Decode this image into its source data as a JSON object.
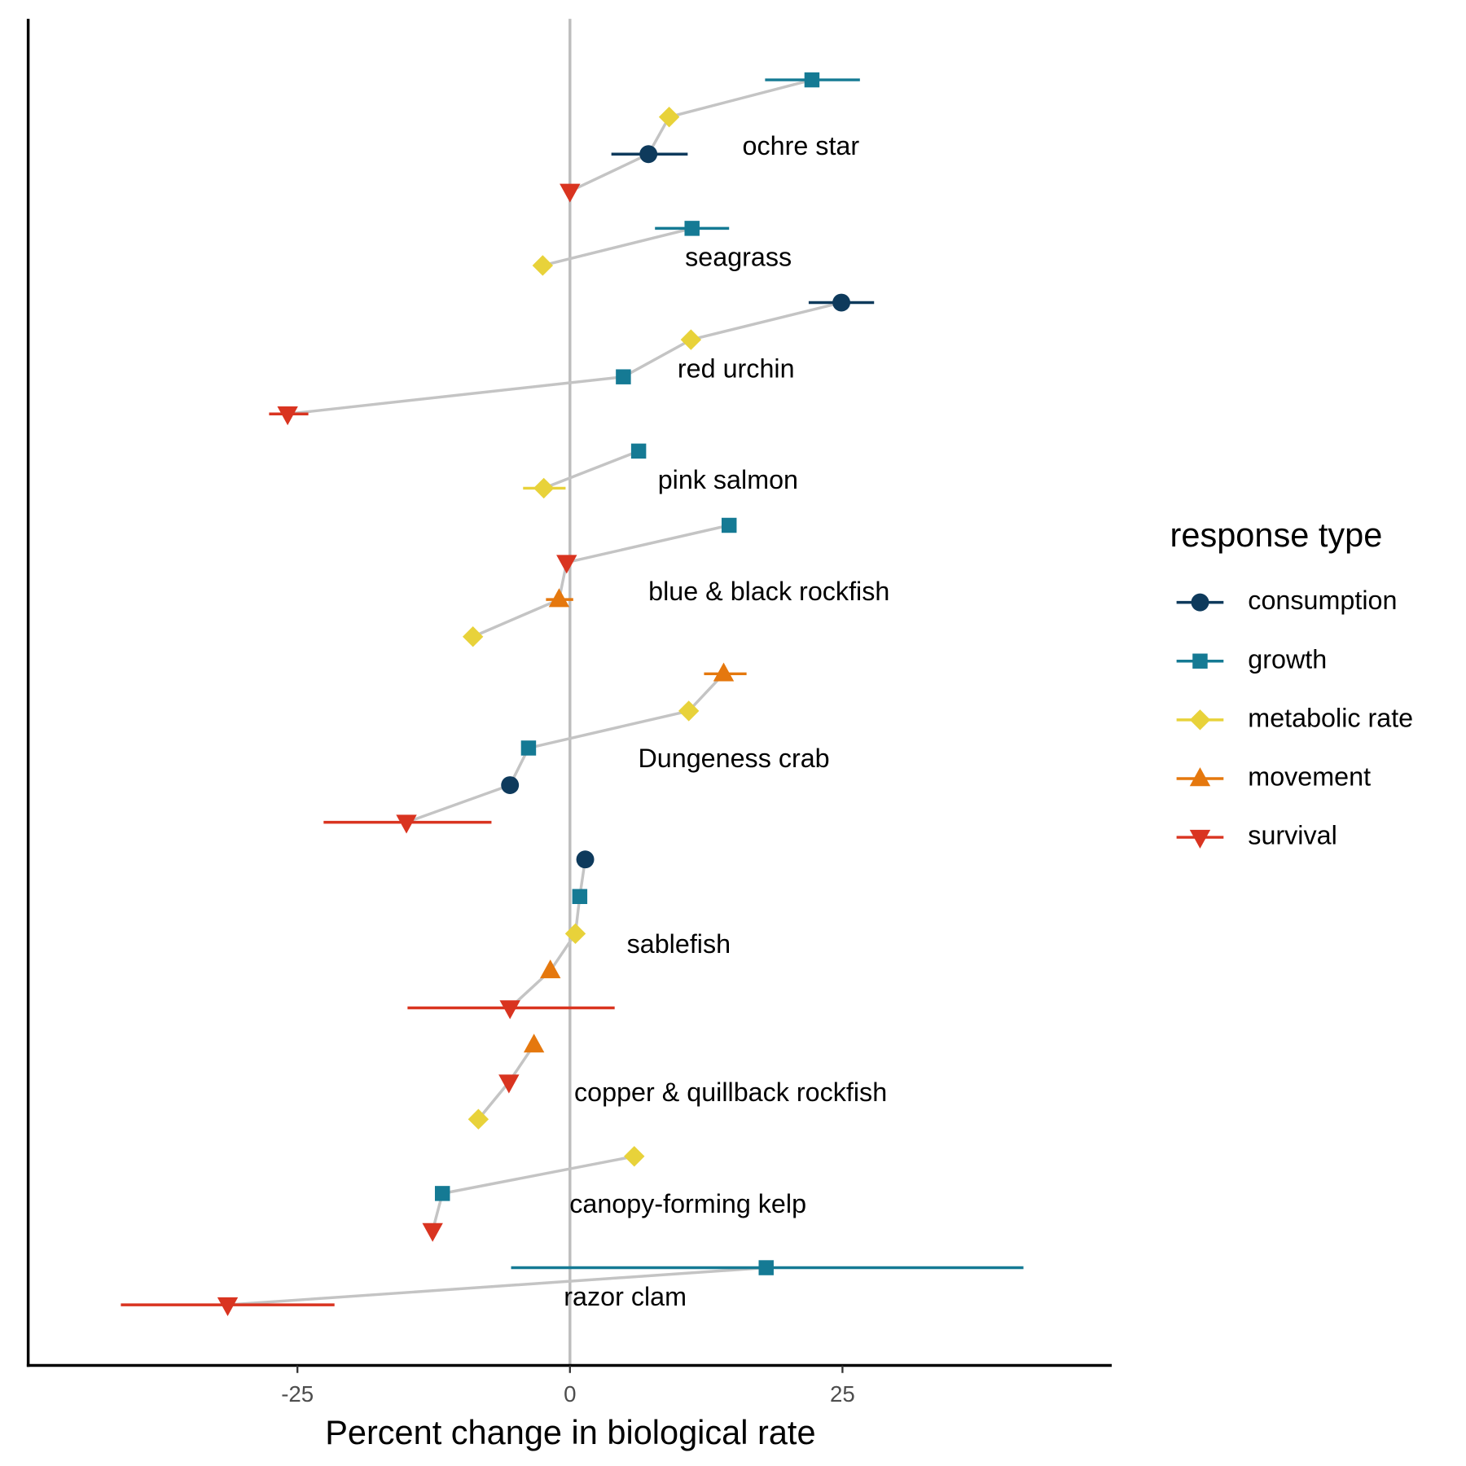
{
  "chart_data": {
    "type": "dot",
    "x_label": "Percent change in biological rate",
    "xlim": [
      -49.7,
      49.7
    ],
    "xticks": [
      -25,
      0,
      25
    ],
    "legend_title": "response type",
    "legend": "right",
    "series": [
      {
        "name": "consumption",
        "color": "#0e3a5c",
        "marker": "circle"
      },
      {
        "name": "growth",
        "color": "#157a94",
        "marker": "square"
      },
      {
        "name": "metabolic rate",
        "color": "#e8d23a",
        "marker": "diamond"
      },
      {
        "name": "movement",
        "color": "#e5780e",
        "marker": "triangle-up"
      },
      {
        "name": "survival",
        "color": "#d93420",
        "marker": "triangle-down"
      }
    ],
    "groups": [
      {
        "label": "ochre star",
        "points": [
          {
            "series": 1,
            "value": 22.2,
            "lo": 17.9,
            "hi": 26.6
          },
          {
            "series": 2,
            "value": 9.1
          },
          {
            "series": 0,
            "value": 7.2,
            "lo": 3.8,
            "hi": 10.8
          },
          {
            "series": 4,
            "value": 0
          }
        ]
      },
      {
        "label": "seagrass",
        "points": [
          {
            "series": 1,
            "value": 11.2,
            "lo": 7.8,
            "hi": 14.6
          },
          {
            "series": 2,
            "value": -2.5
          }
        ]
      },
      {
        "label": "red urchin",
        "points": [
          {
            "series": 0,
            "value": 24.9,
            "lo": 21.9,
            "hi": 27.9
          },
          {
            "series": 2,
            "value": 11.1
          },
          {
            "series": 1,
            "value": 4.9
          },
          {
            "series": 4,
            "value": -25.9,
            "lo": -27.6,
            "hi": -24.0
          }
        ]
      },
      {
        "label": "pink salmon",
        "points": [
          {
            "series": 1,
            "value": 6.3
          },
          {
            "series": 2,
            "value": -2.4,
            "lo": -4.3,
            "hi": -0.4
          }
        ]
      },
      {
        "label": "blue & black rockfish",
        "points": [
          {
            "series": 1,
            "value": 14.6
          },
          {
            "series": 4,
            "value": -0.3
          },
          {
            "series": 3,
            "value": -1.0,
            "lo": -2.2,
            "hi": 0.3
          },
          {
            "series": 2,
            "value": -8.9
          }
        ]
      },
      {
        "label": "Dungeness crab",
        "points": [
          {
            "series": 3,
            "value": 14.1,
            "lo": 12.3,
            "hi": 16.2
          },
          {
            "series": 2,
            "value": 10.9
          },
          {
            "series": 1,
            "value": -3.8
          },
          {
            "series": 0,
            "value": -5.5
          },
          {
            "series": 4,
            "value": -15.0,
            "lo": -22.6,
            "hi": -7.2
          }
        ]
      },
      {
        "label": "sablefish",
        "points": [
          {
            "series": 0,
            "value": 1.4
          },
          {
            "series": 1,
            "value": 0.9
          },
          {
            "series": 2,
            "value": 0.5
          },
          {
            "series": 3,
            "value": -1.8
          },
          {
            "series": 4,
            "value": -5.5,
            "lo": -14.9,
            "hi": 4.1
          }
        ]
      },
      {
        "label": "copper & quillback rockfish",
        "points": [
          {
            "series": 3,
            "value": -3.3
          },
          {
            "series": 4,
            "value": -5.6
          },
          {
            "series": 2,
            "value": -8.4
          }
        ]
      },
      {
        "label": "canopy-forming kelp",
        "points": [
          {
            "series": 2,
            "value": 5.9
          },
          {
            "series": 1,
            "value": -11.7
          },
          {
            "series": 4,
            "value": -12.6
          }
        ]
      },
      {
        "label": "razor clam",
        "points": [
          {
            "series": 1,
            "value": 18.0,
            "lo": -5.4,
            "hi": 41.6
          },
          {
            "series": 4,
            "value": -31.4,
            "lo": -41.2,
            "hi": -21.6
          }
        ]
      }
    ]
  }
}
